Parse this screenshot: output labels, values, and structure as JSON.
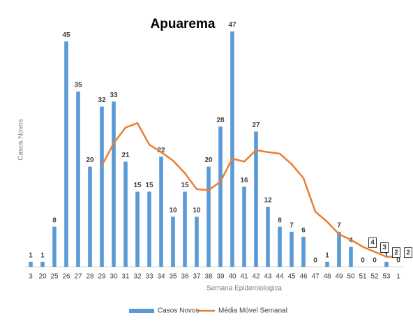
{
  "chart_data": {
    "type": "bar",
    "title": "Apuarema",
    "x_label": "Semana Epidemiologica",
    "y_label": "Casos Novos",
    "categories": [
      "3",
      "20",
      "25",
      "26",
      "27",
      "28",
      "29",
      "30",
      "31",
      "32",
      "33",
      "34",
      "35",
      "36",
      "37",
      "38",
      "39",
      "40",
      "41",
      "42",
      "43",
      "44",
      "45",
      "46",
      "47",
      "48",
      "49",
      "50",
      "51",
      "52",
      "53",
      "1"
    ],
    "ylim": [
      0,
      50
    ],
    "series": [
      {
        "name": "Casos Novos",
        "type": "bar",
        "color": "#5b9bd5",
        "values": [
          1,
          1,
          8,
          45,
          35,
          20,
          32,
          33,
          21,
          15,
          15,
          22,
          10,
          15,
          10,
          20,
          28,
          47,
          16,
          27,
          12,
          8,
          7,
          6,
          0,
          1,
          7,
          4,
          0,
          0,
          1,
          0
        ]
      },
      {
        "name": "Média Móvel Semanal",
        "type": "line",
        "color": "#ed7d31",
        "values": [
          null,
          null,
          null,
          null,
          null,
          null,
          20.2,
          24.7,
          27.8,
          28.7,
          24.4,
          22.9,
          21.2,
          18.7,
          15.5,
          15.3,
          17,
          21.6,
          21,
          23.3,
          22.9,
          22.6,
          20.5,
          17.7,
          11,
          9,
          6.5,
          5.4,
          4,
          3,
          2,
          2
        ],
        "value_labels": [
          null,
          null,
          null,
          null,
          null,
          null,
          null,
          null,
          null,
          null,
          null,
          null,
          null,
          null,
          null,
          null,
          null,
          null,
          null,
          null,
          null,
          null,
          null,
          null,
          null,
          null,
          null,
          null,
          "4",
          "3",
          "2",
          "2"
        ]
      }
    ]
  }
}
